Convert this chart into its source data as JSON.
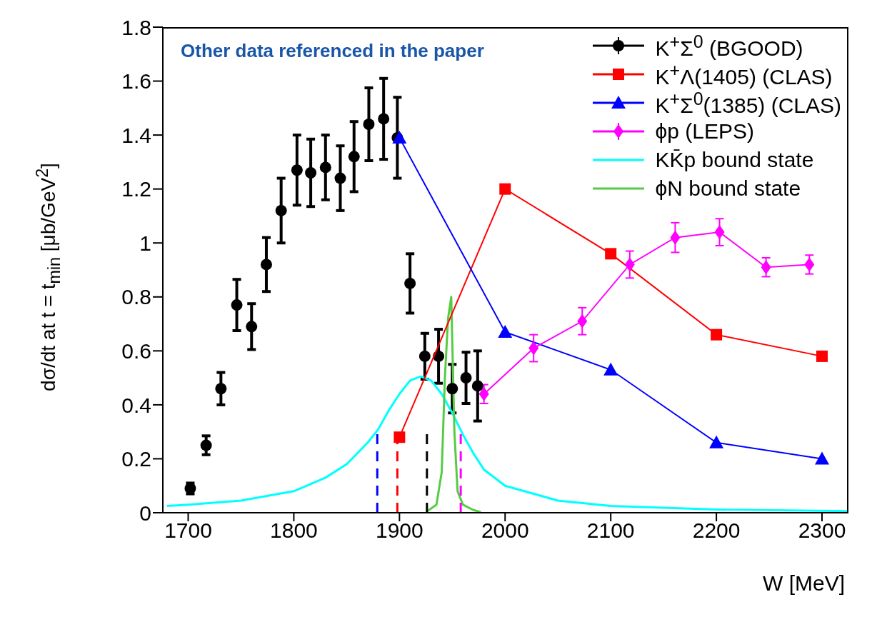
{
  "chart_data": {
    "type": "scatter",
    "xlabel": "W [MeV]",
    "ylabel": "dσ/dt at t = t$_{min}$ [μb/GeV$^{2}$]",
    "xlim": [
      1676,
      2325
    ],
    "ylim": [
      0,
      1.8
    ],
    "xticks": [
      1700,
      1800,
      1900,
      2000,
      2100,
      2200,
      2300
    ],
    "yticks": [
      0,
      0.2,
      0.4,
      0.6,
      0.8,
      1,
      1.2,
      1.4,
      1.6,
      1.8
    ],
    "grid": false,
    "legend": "top right",
    "annotations": [
      "Other data referenced in the paper"
    ],
    "series": [
      {
        "name": "K$^{+}$Σ$^{0}$ (BGOOD)",
        "marker": "circle",
        "color": "#000000",
        "x": [
          1702,
          1717,
          1731,
          1746,
          1760,
          1774,
          1788,
          1803,
          1816,
          1830,
          1844,
          1857,
          1871,
          1885,
          1898,
          1910,
          1924,
          1937,
          1950,
          1963,
          1974
        ],
        "values": [
          0.09,
          0.25,
          0.46,
          0.77,
          0.69,
          0.92,
          1.12,
          1.27,
          1.26,
          1.28,
          1.24,
          1.32,
          1.44,
          1.46,
          1.39,
          0.85,
          0.58,
          0.58,
          0.46,
          0.5,
          0.47
        ],
        "errors": [
          0.02,
          0.035,
          0.06,
          0.095,
          0.085,
          0.1,
          0.12,
          0.13,
          0.125,
          0.12,
          0.12,
          0.13,
          0.135,
          0.15,
          0.15,
          0.11,
          0.085,
          0.1,
          0.09,
          0.095,
          0.13
        ]
      },
      {
        "name": "K$^{+}$Λ(1405) (CLAS)",
        "type": "line",
        "marker": "square",
        "color": "#ff0000",
        "x": [
          1900,
          2000,
          2100,
          2200,
          2300
        ],
        "values": [
          0.28,
          1.2,
          0.96,
          0.66,
          0.58
        ]
      },
      {
        "name": "K$^{+}$Σ$^{0}$(1385) (CLAS)",
        "type": "line",
        "marker": "triangle",
        "color": "#0000ff",
        "x": [
          1900,
          2000,
          2100,
          2200,
          2300
        ],
        "values": [
          1.39,
          0.67,
          0.53,
          0.26,
          0.2
        ]
      },
      {
        "name": "ϕp (LEPS)",
        "type": "line",
        "marker": "diamond",
        "color": "#ff00ff",
        "x": [
          1980,
          2027,
          2073,
          2118,
          2161,
          2203,
          2247,
          2288
        ],
        "values": [
          0.44,
          0.61,
          0.71,
          0.92,
          1.02,
          1.04,
          0.91,
          0.92
        ],
        "errors": [
          0.035,
          0.05,
          0.05,
          0.05,
          0.055,
          0.05,
          0.035,
          0.035
        ]
      },
      {
        "name": "KK̄p bound state",
        "type": "line",
        "marker": "none",
        "color": "#00ffff",
        "x": [
          1680,
          1700,
          1750,
          1800,
          1830,
          1850,
          1870,
          1880,
          1890,
          1900,
          1910,
          1920,
          1930,
          1940,
          1950,
          1960,
          1970,
          1980,
          2000,
          2050,
          2100,
          2200,
          2325
        ],
        "values": [
          0.025,
          0.03,
          0.045,
          0.08,
          0.13,
          0.18,
          0.26,
          0.31,
          0.38,
          0.44,
          0.49,
          0.505,
          0.49,
          0.44,
          0.37,
          0.29,
          0.22,
          0.16,
          0.1,
          0.045,
          0.025,
          0.012,
          0.006
        ]
      },
      {
        "name": "ϕN bound state",
        "type": "line",
        "marker": "none",
        "color": "#55cc44",
        "x": [
          1926,
          1935,
          1940,
          1943,
          1946,
          1949,
          1952,
          1955,
          1960,
          1970,
          1977
        ],
        "values": [
          0.005,
          0.03,
          0.15,
          0.5,
          0.72,
          0.8,
          0.3,
          0.08,
          0.03,
          0.01,
          0.003
        ]
      },
      {
        "type": "line",
        "marker": "none",
        "line_style": "dashed",
        "color": "#0000ff",
        "x": [
          1879,
          1879
        ],
        "values": [
          0,
          0.3
        ]
      },
      {
        "type": "line",
        "marker": "none",
        "line_style": "dashed",
        "color": "#ff0000",
        "x": [
          1898,
          1898
        ],
        "values": [
          0,
          0.3
        ]
      },
      {
        "type": "line",
        "marker": "none",
        "line_style": "dashed",
        "color": "#000000",
        "x": [
          1926,
          1926
        ],
        "values": [
          0,
          0.3
        ]
      },
      {
        "type": "line",
        "marker": "none",
        "line_style": "dashed",
        "color": "#ff00ff",
        "x": [
          1958,
          1958
        ],
        "values": [
          0,
          0.3
        ]
      }
    ]
  }
}
